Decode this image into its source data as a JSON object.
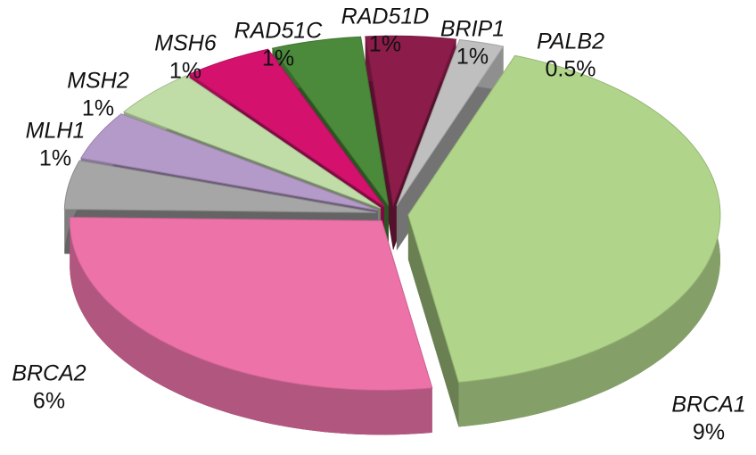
{
  "chart_data": {
    "type": "pie",
    "categories": [
      "BRCA1",
      "BRCA2",
      "MLH1",
      "MSH2",
      "MSH6",
      "RAD51C",
      "RAD51D",
      "BRIP1",
      "PALB2"
    ],
    "values": [
      9,
      6,
      1,
      1,
      1,
      1,
      1,
      1,
      0.5
    ],
    "value_labels": [
      "9%",
      "6%",
      "1%",
      "1%",
      "1%",
      "1%",
      "1%",
      "1%",
      "0.5%"
    ],
    "colors": [
      "#b0d58a",
      "#ec72a8",
      "#a6a6a6",
      "#b49ac8",
      "#c0dda8",
      "#d4126e",
      "#4b8a3a",
      "#8c1c4a",
      "#bfbfbf"
    ]
  }
}
